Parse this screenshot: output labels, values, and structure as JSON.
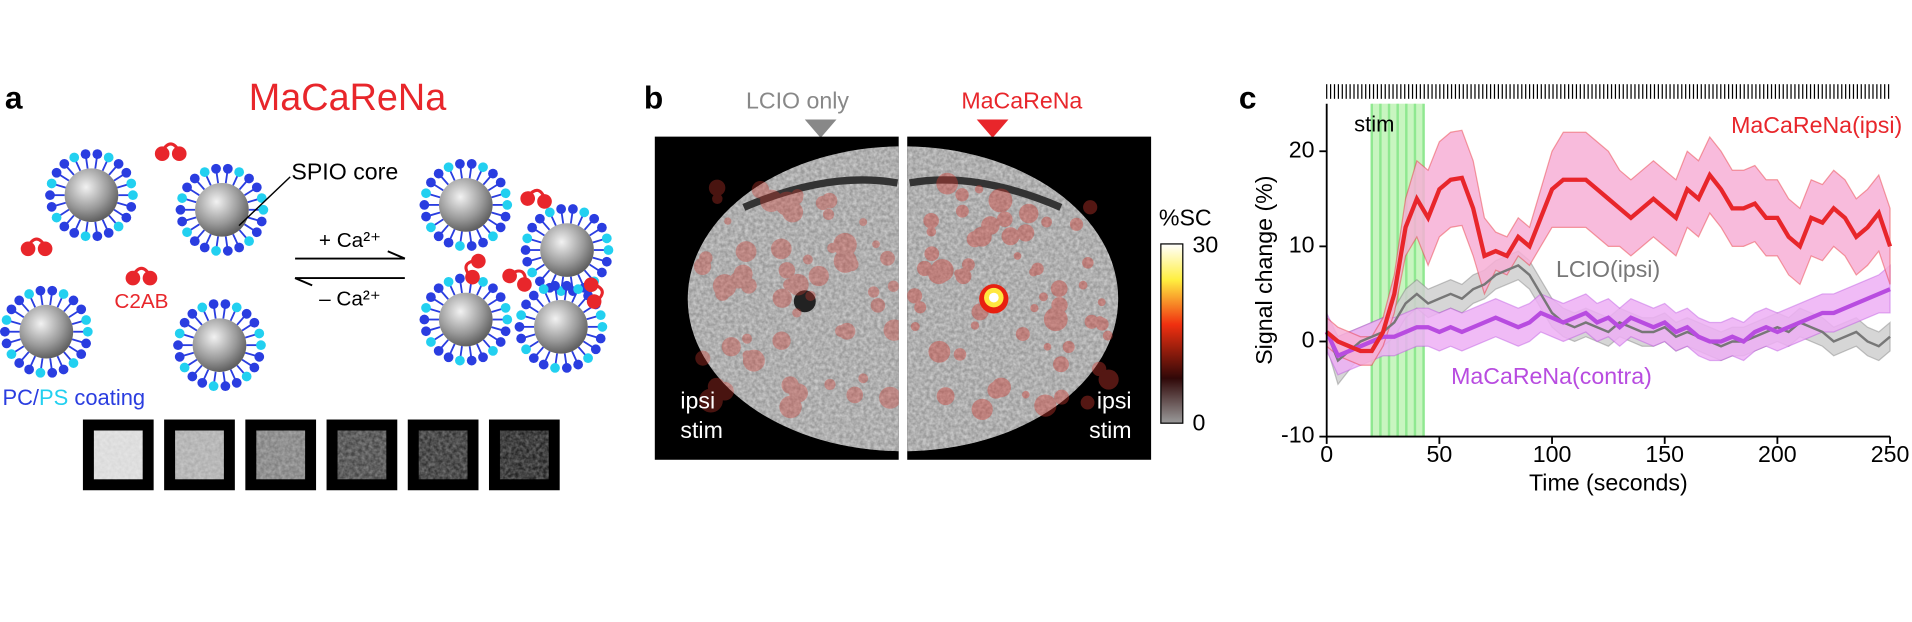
{
  "panel_a": {
    "letter": "a",
    "title": "MaCaReNa",
    "core_label": "SPIO core",
    "forward": "+ Ca²⁺",
    "reverse": "– Ca²⁺",
    "protein": "C2AB",
    "coating": {
      "pc": "PC",
      "sep": "/",
      "ps": "PS",
      "rest": " coating"
    }
  },
  "panel_b": {
    "letter": "b",
    "left_label": "LCIO only",
    "right_label": "MaCaReNa",
    "side_line1": "ipsi",
    "side_line2": "stim",
    "colorbar_title": "%SC",
    "colorbar_max": "30",
    "colorbar_min": "0"
  },
  "chart_data": {
    "type": "line",
    "letter": "c",
    "xlabel": "Time (seconds)",
    "ylabel": "Signal change (%)",
    "stim_label": "stim",
    "stim_range": [
      20,
      43
    ],
    "xlim": [
      0,
      250
    ],
    "xticks": [
      0,
      50,
      100,
      150,
      200,
      250
    ],
    "ylim": [
      -10,
      25
    ],
    "yticks": [
      -10,
      0,
      10,
      20
    ],
    "x": [
      0,
      5,
      10,
      15,
      20,
      25,
      30,
      35,
      40,
      45,
      50,
      55,
      60,
      65,
      70,
      75,
      80,
      85,
      90,
      95,
      100,
      105,
      110,
      115,
      120,
      125,
      130,
      135,
      140,
      145,
      150,
      155,
      160,
      165,
      170,
      175,
      180,
      185,
      190,
      195,
      200,
      205,
      210,
      215,
      220,
      225,
      230,
      235,
      240,
      245,
      250
    ],
    "series": [
      {
        "name": "MaCaReNa(ipsi)",
        "color": "#e8262b",
        "band_color": "#f7b0d6",
        "values": [
          1,
          0,
          -0.5,
          -1,
          -1,
          1,
          5,
          12,
          15,
          13,
          16,
          17,
          17.2,
          14,
          9,
          9.5,
          9,
          11,
          10,
          13,
          16,
          17,
          17,
          17,
          16,
          15,
          14,
          13,
          14,
          15,
          14,
          13,
          16,
          15,
          17.5,
          16,
          14,
          14,
          14.5,
          13,
          13,
          11,
          10,
          13,
          12.5,
          14,
          13,
          11,
          12,
          13.5,
          10
        ],
        "error": [
          1.5,
          1.5,
          1.5,
          1.5,
          1.5,
          1.5,
          2,
          3,
          4,
          5,
          5,
          5,
          5,
          5,
          4,
          2,
          2,
          2,
          2,
          3,
          4,
          5,
          5,
          5,
          5,
          5,
          4,
          4,
          4,
          4,
          4,
          4,
          4,
          4,
          4,
          4,
          4,
          4,
          4,
          4,
          4,
          4,
          4,
          4,
          4,
          4,
          4,
          4,
          4,
          4,
          4
        ]
      },
      {
        "name": "LCIO(ipsi)",
        "color": "#777777",
        "band_color": "#cfcfcf",
        "values": [
          1,
          -2,
          -1,
          0,
          0.5,
          1,
          2,
          4,
          5,
          4,
          4.5,
          5,
          4.5,
          5.5,
          6,
          7,
          7.5,
          8,
          7,
          5,
          3,
          2,
          1.5,
          2,
          1.5,
          1,
          2,
          1.5,
          1,
          1,
          1.5,
          0.5,
          1,
          0.5,
          0,
          -0.5,
          0,
          0,
          0.5,
          1,
          1.5,
          1,
          2,
          1.5,
          1,
          0,
          0.5,
          1,
          0,
          -0.5,
          0.5
        ],
        "error": [
          1.5,
          2.5,
          2,
          1.5,
          1.5,
          1.5,
          1.5,
          1.5,
          1.5,
          1.5,
          1.5,
          1.5,
          1.5,
          1.5,
          1.5,
          1.5,
          1.5,
          1.5,
          1.5,
          1.5,
          1.5,
          1.5,
          1.5,
          1.5,
          1.5,
          1.5,
          1.5,
          1.5,
          1.5,
          1.5,
          1.5,
          1.5,
          1.5,
          1.5,
          1.5,
          1.5,
          1.5,
          1.5,
          1.5,
          1.5,
          1.5,
          1.5,
          1.5,
          1.5,
          1.5,
          1.5,
          1.5,
          1.5,
          1.5,
          1.5,
          1.5
        ]
      },
      {
        "name": "MaCaReNa(contra)",
        "color": "#b84ce0",
        "band_color": "#eeb0f5",
        "values": [
          1,
          -1.5,
          -1,
          -0.5,
          0,
          0.5,
          0.5,
          1,
          1.5,
          1.5,
          1,
          1.5,
          1,
          1.5,
          2,
          2.5,
          2,
          1.5,
          2,
          3,
          2.5,
          2,
          2.5,
          3,
          2,
          2.5,
          1.5,
          2.5,
          2,
          1.5,
          2,
          1,
          1.5,
          0.5,
          0,
          0,
          0.5,
          0,
          1,
          1.5,
          1,
          1.5,
          2,
          2.5,
          3,
          3,
          3.5,
          4,
          4.5,
          5,
          5.5
        ],
        "error": [
          2,
          2,
          2,
          2,
          2,
          2,
          2,
          2,
          2,
          2,
          2,
          2,
          2,
          2,
          2,
          2,
          2,
          2,
          2,
          2,
          2,
          2,
          2,
          2,
          2,
          2,
          2,
          2,
          2,
          2,
          2,
          2,
          2,
          2,
          2,
          2,
          2,
          2,
          2,
          2,
          2,
          2,
          2,
          2,
          2,
          2,
          2,
          2,
          2,
          2,
          2.5
        ]
      }
    ]
  }
}
